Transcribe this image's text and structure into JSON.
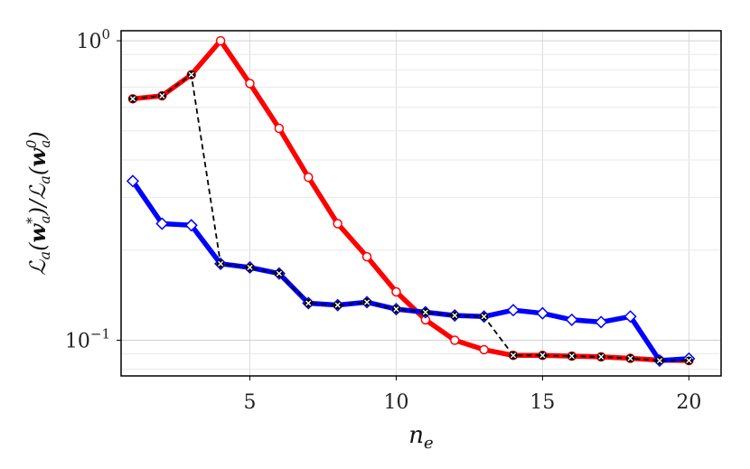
{
  "chart_data": {
    "type": "line",
    "title": "",
    "xlabel": "n_e",
    "ylabel": "ℒ_a(w_a*)/ℒ_a(w_a⁰)",
    "yscale": "log",
    "xlim": [
      0.6,
      21.1
    ],
    "ylim": [
      0.076,
      1.08
    ],
    "grid": true,
    "legend": "none",
    "x": [
      1,
      2,
      3,
      4,
      5,
      6,
      7,
      8,
      9,
      10,
      11,
      12,
      13,
      14,
      15,
      16,
      17,
      18,
      19,
      20
    ],
    "xticks": [
      5,
      10,
      15,
      20
    ],
    "yticks": [
      1,
      0.1
    ],
    "series": [
      {
        "color": "#ff0000",
        "marker": "circle",
        "values": [
          0.64,
          0.655,
          0.77,
          1.0,
          0.72,
          0.51,
          0.35,
          0.245,
          0.19,
          0.145,
          0.117,
          0.1,
          0.093,
          0.089,
          0.089,
          0.0885,
          0.088,
          0.087,
          0.0858,
          0.0855
        ]
      },
      {
        "color": "#0000ff",
        "marker": "diamond",
        "values": [
          0.34,
          0.245,
          0.242,
          0.18,
          0.175,
          0.167,
          0.133,
          0.131,
          0.134,
          0.127,
          0.124,
          0.121,
          0.12,
          0.126,
          0.123,
          0.117,
          0.115,
          0.12,
          0.0855,
          0.0868
        ]
      },
      {
        "color": "#000000",
        "marker": "x",
        "dashed": true,
        "values": [
          0.64,
          0.655,
          0.77,
          0.18,
          0.175,
          0.167,
          0.133,
          0.131,
          0.134,
          0.127,
          0.124,
          0.121,
          0.12,
          0.089,
          0.089,
          0.0885,
          0.088,
          0.087,
          0.0855,
          0.0855
        ]
      }
    ]
  }
}
